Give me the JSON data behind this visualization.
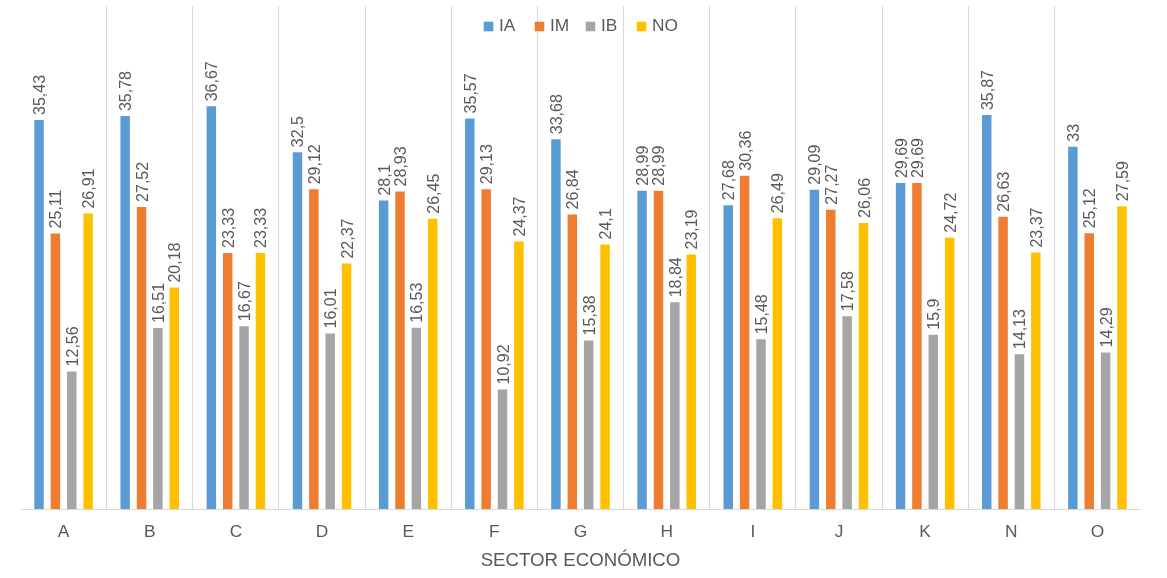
{
  "chart_data": {
    "type": "bar",
    "xlabel": "SECTOR ECONÓMICO",
    "categories": [
      "A",
      "B",
      "C",
      "D",
      "E",
      "F",
      "G",
      "H",
      "I",
      "J",
      "K",
      "N",
      "O"
    ],
    "series": [
      {
        "name": "IA",
        "color": "#5b9bd5",
        "values": [
          35.43,
          35.78,
          36.67,
          32.5,
          28.1,
          35.57,
          33.68,
          28.99,
          27.68,
          29.09,
          29.69,
          35.87,
          33
        ],
        "value_labels": [
          "35,43",
          "35,78",
          "36,67",
          "32,5",
          "28,1",
          "35,57",
          "33,68",
          "28,99",
          "27,68",
          "29,09",
          "29,69",
          "35,87",
          "33"
        ]
      },
      {
        "name": "IM",
        "color": "#ed7d31",
        "values": [
          25.11,
          27.52,
          23.33,
          29.12,
          28.93,
          29.13,
          26.84,
          28.99,
          30.36,
          27.27,
          29.69,
          26.63,
          25.12
        ],
        "value_labels": [
          "25,11",
          "27,52",
          "23,33",
          "29,12",
          "28,93",
          "29,13",
          "26,84",
          "28,99",
          "30,36",
          "27,27",
          "29,69",
          "26,63",
          "25,12"
        ]
      },
      {
        "name": "IB",
        "color": "#a5a5a5",
        "values": [
          12.56,
          16.51,
          16.67,
          16.01,
          16.53,
          10.92,
          15.38,
          18.84,
          15.48,
          17.58,
          15.9,
          14.13,
          14.29
        ],
        "value_labels": [
          "12,56",
          "16,51",
          "16,67",
          "16,01",
          "16,53",
          "10,92",
          "15,38",
          "18,84",
          "15,48",
          "17,58",
          "15,9",
          "14,13",
          "14,29"
        ]
      },
      {
        "name": "NO",
        "color": "#ffc000",
        "values": [
          26.91,
          20.18,
          23.33,
          22.37,
          26.45,
          24.37,
          24.1,
          23.19,
          26.49,
          26.06,
          24.72,
          23.37,
          27.59
        ],
        "value_labels": [
          "26,91",
          "20,18",
          "23,33",
          "22,37",
          "26,45",
          "24,37",
          "24,1",
          "23,19",
          "26,49",
          "26,06",
          "24,72",
          "23,37",
          "27,59"
        ]
      }
    ],
    "grid": "x",
    "legend": "top"
  }
}
